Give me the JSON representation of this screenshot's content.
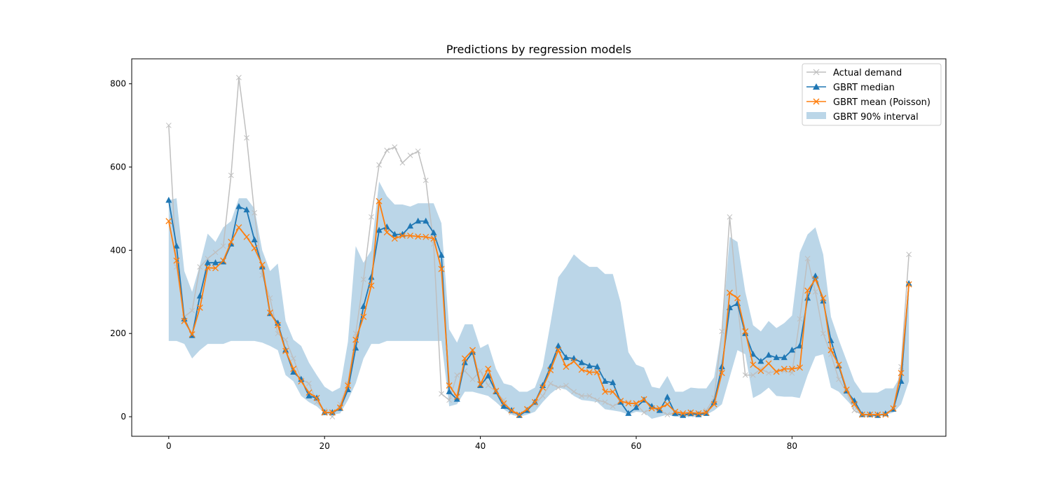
{
  "chart_data": {
    "type": "line",
    "title": "Predictions by regression models",
    "xlabel": "",
    "ylabel": "",
    "xlim": [
      -4.75,
      99.75
    ],
    "ylim": [
      -47,
      860
    ],
    "xticks": [
      0,
      20,
      40,
      60,
      80
    ],
    "yticks": [
      0,
      200,
      400,
      600,
      800
    ],
    "grid": false,
    "legend_position": "top-right",
    "x": [
      0,
      1,
      2,
      3,
      4,
      5,
      6,
      7,
      8,
      9,
      10,
      11,
      12,
      13,
      14,
      15,
      16,
      17,
      18,
      19,
      20,
      21,
      22,
      23,
      24,
      25,
      26,
      27,
      28,
      29,
      30,
      31,
      32,
      33,
      34,
      35,
      36,
      37,
      38,
      39,
      40,
      41,
      42,
      43,
      44,
      45,
      46,
      47,
      48,
      49,
      50,
      51,
      52,
      53,
      54,
      55,
      56,
      57,
      58,
      59,
      60,
      61,
      62,
      63,
      64,
      65,
      66,
      67,
      68,
      69,
      70,
      71,
      72,
      73,
      74,
      75,
      76,
      77,
      78,
      79,
      80,
      81,
      82,
      83,
      84,
      85,
      86,
      87,
      88,
      89,
      90,
      91,
      92,
      93,
      94,
      95
    ],
    "series": [
      {
        "name": "Actual demand",
        "color": "#bfbfbf",
        "marker": "x",
        "values": [
          700,
          360,
          240,
          255,
          360,
          380,
          395,
          410,
          580,
          815,
          670,
          490,
          340,
          285,
          200,
          185,
          140,
          90,
          80,
          35,
          15,
          0,
          30,
          80,
          200,
          330,
          480,
          605,
          640,
          648,
          610,
          628,
          638,
          568,
          415,
          55,
          40,
          100,
          110,
          90,
          110,
          75,
          60,
          40,
          10,
          5,
          20,
          30,
          50,
          80,
          70,
          75,
          60,
          50,
          50,
          40,
          35,
          25,
          35,
          35,
          30,
          10,
          20,
          15,
          5,
          10,
          5,
          5,
          5,
          15,
          45,
          205,
          480,
          275,
          100,
          100,
          115,
          105,
          110,
          110,
          105,
          235,
          380,
          300,
          200,
          150,
          90,
          60,
          15,
          5,
          5,
          5,
          5,
          20,
          120,
          390
        ]
      },
      {
        "name": "GBRT median",
        "color": "#1f77b4",
        "marker": "triangle",
        "values": [
          520,
          410,
          235,
          195,
          290,
          370,
          370,
          372,
          415,
          505,
          497,
          425,
          360,
          248,
          225,
          160,
          107,
          90,
          50,
          45,
          10,
          10,
          20,
          65,
          165,
          265,
          335,
          448,
          456,
          438,
          438,
          458,
          470,
          470,
          442,
          388,
          60,
          42,
          130,
          155,
          75,
          98,
          60,
          25,
          15,
          3,
          15,
          35,
          75,
          120,
          170,
          142,
          140,
          130,
          122,
          120,
          85,
          82,
          35,
          8,
          22,
          40,
          25,
          15,
          47,
          8,
          3,
          8,
          5,
          8,
          35,
          120,
          262,
          272,
          200,
          150,
          133,
          148,
          142,
          142,
          160,
          170,
          285,
          338,
          278,
          183,
          122,
          62,
          38,
          5,
          5,
          3,
          7,
          18,
          85,
          320
        ]
      },
      {
        "name": "GBRT mean (Poisson)",
        "color": "#ff7f0e",
        "marker": "x",
        "values": [
          470,
          375,
          230,
          198,
          262,
          358,
          357,
          375,
          420,
          455,
          432,
          405,
          365,
          250,
          220,
          158,
          115,
          85,
          58,
          45,
          10,
          10,
          22,
          75,
          185,
          240,
          315,
          518,
          443,
          428,
          435,
          435,
          433,
          432,
          428,
          355,
          75,
          48,
          140,
          160,
          78,
          115,
          62,
          32,
          15,
          5,
          18,
          35,
          70,
          112,
          160,
          120,
          133,
          113,
          107,
          107,
          60,
          60,
          38,
          32,
          32,
          42,
          20,
          20,
          30,
          12,
          8,
          10,
          8,
          10,
          30,
          105,
          298,
          285,
          205,
          125,
          110,
          128,
          108,
          115,
          115,
          118,
          303,
          330,
          285,
          160,
          125,
          65,
          30,
          5,
          5,
          5,
          5,
          20,
          105,
          318
        ]
      }
    ],
    "interval": {
      "name": "GBRT 90% interval",
      "color": "#1f77b4",
      "alpha": 0.3,
      "lower": [
        182,
        182,
        175,
        140,
        160,
        175,
        175,
        175,
        182,
        182,
        182,
        182,
        178,
        170,
        160,
        100,
        85,
        50,
        35,
        25,
        8,
        5,
        8,
        40,
        80,
        140,
        175,
        175,
        182,
        182,
        182,
        182,
        182,
        182,
        182,
        182,
        25,
        30,
        60,
        60,
        55,
        50,
        35,
        18,
        5,
        0,
        5,
        12,
        35,
        55,
        70,
        65,
        50,
        40,
        38,
        35,
        18,
        15,
        12,
        5,
        12,
        10,
        -5,
        0,
        5,
        0,
        0,
        0,
        0,
        5,
        15,
        30,
        95,
        160,
        150,
        45,
        55,
        70,
        50,
        48,
        48,
        45,
        100,
        145,
        150,
        70,
        60,
        40,
        20,
        0,
        0,
        0,
        5,
        10,
        30,
        85
      ],
      "upper": [
        520,
        525,
        350,
        300,
        365,
        440,
        420,
        455,
        470,
        525,
        525,
        500,
        400,
        350,
        368,
        230,
        185,
        170,
        130,
        100,
        72,
        60,
        70,
        180,
        410,
        370,
        400,
        565,
        530,
        510,
        510,
        505,
        513,
        513,
        513,
        465,
        210,
        178,
        222,
        222,
        165,
        175,
        115,
        80,
        75,
        60,
        60,
        70,
        120,
        225,
        335,
        360,
        390,
        373,
        360,
        360,
        343,
        343,
        275,
        155,
        125,
        118,
        72,
        68,
        98,
        60,
        60,
        70,
        68,
        68,
        95,
        210,
        432,
        420,
        300,
        220,
        205,
        230,
        213,
        225,
        243,
        395,
        438,
        455,
        390,
        240,
        185,
        135,
        85,
        58,
        58,
        58,
        68,
        68,
        100,
        320
      ]
    }
  }
}
